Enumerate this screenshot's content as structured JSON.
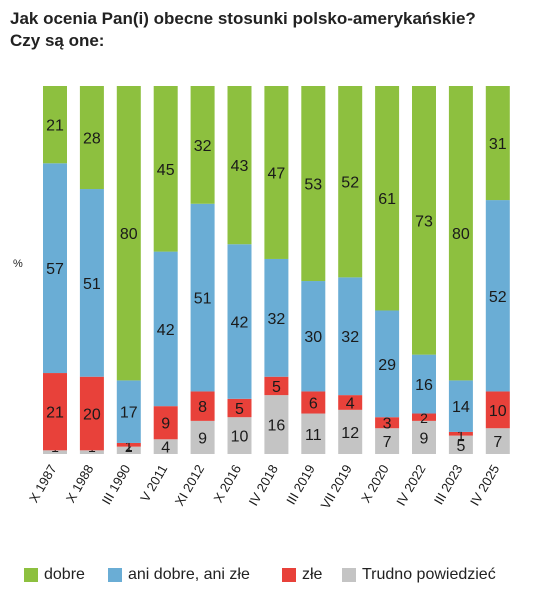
{
  "header": {
    "title_line1": "Jak ocenia Pan(i) obecne stosunki polsko-amerykańskie?",
    "title_line2": "Czy są one:",
    "unit_label": "%"
  },
  "chart_data": {
    "type": "bar",
    "stacked": true,
    "categories": [
      "X 1987",
      "X 1988",
      "III 1990",
      "V 2011",
      "XI 2012",
      "X 2016",
      "IV 2018",
      "III 2019",
      "VII 2019",
      "X 2020",
      "IV 2022",
      "III 2023",
      "IV 2025"
    ],
    "series": [
      {
        "name": "Trudno powiedzieć",
        "color": "#c4c4c4",
        "values": [
          1,
          1,
          2,
          4,
          9,
          10,
          16,
          11,
          12,
          7,
          9,
          5,
          7
        ]
      },
      {
        "name": "złe",
        "color": "#e8413a",
        "values": [
          21,
          20,
          1,
          9,
          8,
          5,
          5,
          6,
          4,
          3,
          2,
          1,
          10
        ]
      },
      {
        "name": "ani dobre, ani złe",
        "color": "#6aadd5",
        "values": [
          57,
          51,
          17,
          42,
          51,
          42,
          32,
          30,
          32,
          29,
          16,
          14,
          52
        ]
      },
      {
        "name": "dobre",
        "color": "#8dc03f",
        "values": [
          21,
          28,
          80,
          45,
          32,
          43,
          47,
          53,
          52,
          61,
          73,
          80,
          31
        ]
      }
    ],
    "ylim": [
      0,
      100
    ],
    "legend_position": "bottom",
    "grid": false
  },
  "legend": {
    "items": [
      {
        "label": "dobre",
        "color": "#8dc03f"
      },
      {
        "label": "ani dobre, ani złe",
        "color": "#6aadd5"
      },
      {
        "label": "złe",
        "color": "#e8413a"
      },
      {
        "label": "Trudno powiedzieć",
        "color": "#c4c4c4"
      }
    ]
  }
}
